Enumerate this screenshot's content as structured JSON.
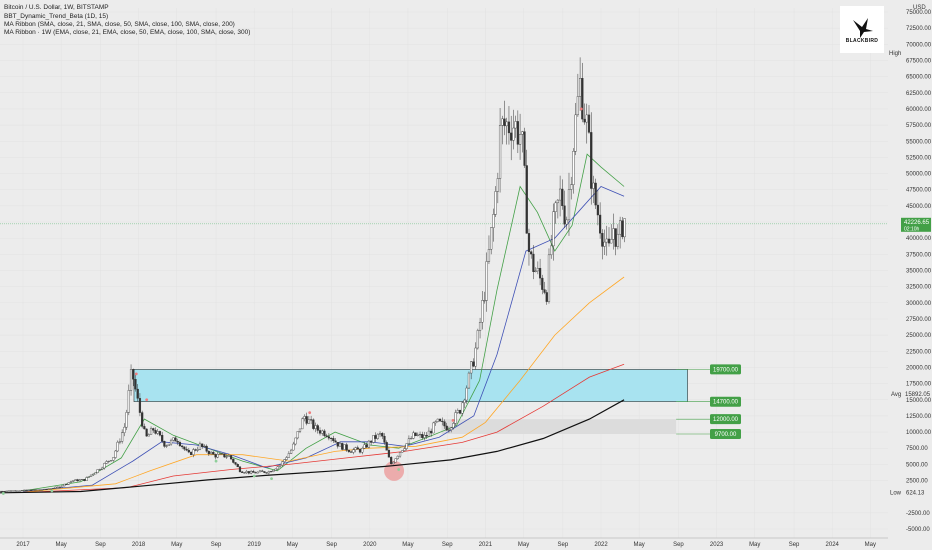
{
  "chart_data": {
    "type": "candlestick",
    "title": "Bitcoin / U.S. Dollar, 1W, BITSTAMP",
    "legend_lines": [
      "BBT_Dynamic_Trend_Beta (1D, 15)",
      "MA Ribbon (SMA, close, 21, SMA, close, 50, SMA, close, 100, SMA, close, 200)",
      "MA Ribbon · 1W (EMA, close, 21, EMA, close, 50, EMA, close, 100, SMA, close, 300)"
    ],
    "currency": "USD",
    "ylim": [
      -6000,
      76000
    ],
    "y_ticks": [
      -5000,
      -2500,
      2500,
      5000,
      7500,
      10000,
      12500,
      15000,
      17500,
      20000,
      22500,
      25000,
      27500,
      30000,
      32500,
      35000,
      37500,
      40000,
      42500,
      45000,
      47500,
      50000,
      52500,
      55000,
      57500,
      60000,
      62500,
      65000,
      67500,
      70000,
      72500,
      75000
    ],
    "y_tick_labels": [
      "-5000.00",
      "-2500.00",
      "2500.00",
      "5000.00",
      "7500.00",
      "10000.00",
      "12500.00",
      "15000.00",
      "17500.00",
      "20000.00",
      "22500.00",
      "25000.00",
      "27500.00",
      "30000.00",
      "32500.00",
      "35000.00",
      "37500.00",
      "40000.00",
      "42500.00",
      "45000.00",
      "47500.00",
      "50000.00",
      "52500.00",
      "55000.00",
      "57500.00",
      "60000.00",
      "62500.00",
      "65000.00",
      "67500.00",
      "70000.00",
      "72500.00",
      "75000.00"
    ],
    "x_ticks": [
      {
        "label": "2017",
        "t": 2017.0
      },
      {
        "label": "May",
        "t": 2017.33
      },
      {
        "label": "Sep",
        "t": 2017.67
      },
      {
        "label": "2018",
        "t": 2018.0
      },
      {
        "label": "May",
        "t": 2018.33
      },
      {
        "label": "Sep",
        "t": 2018.67
      },
      {
        "label": "2019",
        "t": 2019.0
      },
      {
        "label": "May",
        "t": 2019.33
      },
      {
        "label": "Sep",
        "t": 2019.67
      },
      {
        "label": "2020",
        "t": 2020.0
      },
      {
        "label": "May",
        "t": 2020.33
      },
      {
        "label": "Sep",
        "t": 2020.67
      },
      {
        "label": "2021",
        "t": 2021.0
      },
      {
        "label": "May",
        "t": 2021.33
      },
      {
        "label": "Sep",
        "t": 2021.67
      },
      {
        "label": "2022",
        "t": 2022.0
      },
      {
        "label": "May",
        "t": 2022.33
      },
      {
        "label": "Sep",
        "t": 2022.67
      },
      {
        "label": "2023",
        "t": 2023.0
      },
      {
        "label": "May",
        "t": 2023.33
      },
      {
        "label": "Sep",
        "t": 2023.67
      },
      {
        "label": "2024",
        "t": 2024.0
      },
      {
        "label": "May",
        "t": 2024.33
      }
    ],
    "xlim": [
      2016.8,
      2024.75
    ],
    "price_path": [
      [
        2016.8,
        850
      ],
      [
        2017.0,
        960
      ],
      [
        2017.2,
        1100
      ],
      [
        2017.33,
        1500
      ],
      [
        2017.45,
        2500
      ],
      [
        2017.55,
        2600
      ],
      [
        2017.67,
        4200
      ],
      [
        2017.8,
        6200
      ],
      [
        2017.9,
        11000
      ],
      [
        2017.96,
        19500
      ],
      [
        2018.02,
        14000
      ],
      [
        2018.08,
        9000
      ],
      [
        2018.15,
        10500
      ],
      [
        2018.25,
        8000
      ],
      [
        2018.35,
        9000
      ],
      [
        2018.45,
        6500
      ],
      [
        2018.55,
        7900
      ],
      [
        2018.67,
        6400
      ],
      [
        2018.8,
        6300
      ],
      [
        2018.9,
        4000
      ],
      [
        2019.0,
        3700
      ],
      [
        2019.15,
        3900
      ],
      [
        2019.25,
        5000
      ],
      [
        2019.35,
        7500
      ],
      [
        2019.45,
        12500
      ],
      [
        2019.55,
        10500
      ],
      [
        2019.67,
        9600
      ],
      [
        2019.75,
        8000
      ],
      [
        2019.85,
        7200
      ],
      [
        2019.95,
        7200
      ],
      [
        2020.05,
        9000
      ],
      [
        2020.12,
        9700
      ],
      [
        2020.2,
        5000
      ],
      [
        2020.28,
        7000
      ],
      [
        2020.4,
        9500
      ],
      [
        2020.5,
        9200
      ],
      [
        2020.6,
        11500
      ],
      [
        2020.7,
        10700
      ],
      [
        2020.8,
        13500
      ],
      [
        2020.88,
        18500
      ],
      [
        2020.95,
        24000
      ],
      [
        2021.02,
        33000
      ],
      [
        2021.1,
        45000
      ],
      [
        2021.15,
        57000
      ],
      [
        2021.25,
        58000
      ],
      [
        2021.33,
        56000
      ],
      [
        2021.4,
        37000
      ],
      [
        2021.48,
        34000
      ],
      [
        2021.55,
        32000
      ],
      [
        2021.6,
        41000
      ],
      [
        2021.67,
        47000
      ],
      [
        2021.72,
        43000
      ],
      [
        2021.78,
        55000
      ],
      [
        2021.84,
        64000
      ],
      [
        2021.9,
        57000
      ],
      [
        2021.95,
        47000
      ],
      [
        2022.02,
        42000
      ],
      [
        2022.08,
        37000
      ],
      [
        2022.13,
        42000
      ],
      [
        2022.17,
        39000
      ],
      [
        2022.21,
        43000
      ]
    ],
    "ma_lines": [
      {
        "color": "#43a047",
        "points": [
          [
            2017.0,
            900
          ],
          [
            2017.5,
            2300
          ],
          [
            2017.85,
            6000
          ],
          [
            2018.05,
            12000
          ],
          [
            2018.3,
            9500
          ],
          [
            2018.6,
            7500
          ],
          [
            2018.9,
            5500
          ],
          [
            2019.2,
            4000
          ],
          [
            2019.45,
            7500
          ],
          [
            2019.7,
            10000
          ],
          [
            2020.0,
            8000
          ],
          [
            2020.25,
            7500
          ],
          [
            2020.5,
            9200
          ],
          [
            2020.75,
            11000
          ],
          [
            2020.95,
            18000
          ],
          [
            2021.1,
            32000
          ],
          [
            2021.3,
            48000
          ],
          [
            2021.45,
            44000
          ],
          [
            2021.6,
            38000
          ],
          [
            2021.75,
            42000
          ],
          [
            2021.88,
            53000
          ],
          [
            2022.0,
            51000
          ],
          [
            2022.2,
            48000
          ]
        ]
      },
      {
        "color": "#3f51b5",
        "points": [
          [
            2017.0,
            800
          ],
          [
            2017.6,
            1800
          ],
          [
            2017.95,
            5500
          ],
          [
            2018.2,
            8500
          ],
          [
            2018.5,
            8000
          ],
          [
            2018.8,
            6500
          ],
          [
            2019.1,
            4500
          ],
          [
            2019.45,
            6000
          ],
          [
            2019.75,
            8500
          ],
          [
            2020.0,
            8500
          ],
          [
            2020.3,
            7800
          ],
          [
            2020.6,
            9200
          ],
          [
            2020.9,
            12500
          ],
          [
            2021.1,
            22000
          ],
          [
            2021.35,
            38000
          ],
          [
            2021.6,
            40000
          ],
          [
            2021.8,
            44000
          ],
          [
            2022.0,
            48000
          ],
          [
            2022.2,
            46500
          ]
        ]
      },
      {
        "color": "#ffa726",
        "points": [
          [
            2017.0,
            700
          ],
          [
            2017.8,
            2000
          ],
          [
            2018.1,
            4000
          ],
          [
            2018.5,
            6500
          ],
          [
            2018.9,
            6500
          ],
          [
            2019.3,
            5500
          ],
          [
            2019.7,
            7000
          ],
          [
            2020.0,
            7500
          ],
          [
            2020.4,
            7800
          ],
          [
            2020.8,
            9200
          ],
          [
            2021.0,
            11500
          ],
          [
            2021.3,
            18000
          ],
          [
            2021.6,
            25000
          ],
          [
            2021.9,
            30000
          ],
          [
            2022.2,
            34000
          ]
        ]
      },
      {
        "color": "#e53935",
        "points": [
          [
            2017.0,
            650
          ],
          [
            2017.9,
            1400
          ],
          [
            2018.3,
            3200
          ],
          [
            2018.8,
            4200
          ],
          [
            2019.3,
            5000
          ],
          [
            2019.8,
            6000
          ],
          [
            2020.3,
            7000
          ],
          [
            2020.8,
            8400
          ],
          [
            2021.1,
            10000
          ],
          [
            2021.5,
            14000
          ],
          [
            2021.9,
            18500
          ],
          [
            2022.2,
            20500
          ]
        ]
      },
      {
        "color": "#111111",
        "points": [
          [
            2016.8,
            600
          ],
          [
            2017.5,
            800
          ],
          [
            2018.0,
            1600
          ],
          [
            2018.6,
            2600
          ],
          [
            2019.1,
            3300
          ],
          [
            2019.7,
            4000
          ],
          [
            2020.2,
            4800
          ],
          [
            2020.7,
            5700
          ],
          [
            2021.1,
            7000
          ],
          [
            2021.5,
            9000
          ],
          [
            2021.9,
            12000
          ],
          [
            2022.2,
            15000
          ]
        ]
      }
    ],
    "zones": [
      {
        "name": "cyan-zone",
        "t0": 2017.96,
        "t1": 2022.75,
        "y0": 14700,
        "y1": 19700,
        "color": "#a8e3f0"
      },
      {
        "name": "gray-zone",
        "t0": 2020.62,
        "t1": 2022.65,
        "y0": 9700,
        "y1": 12000,
        "color": "#dcdcdc"
      }
    ],
    "level_labels": [
      {
        "value": 19700,
        "text": "19700.00"
      },
      {
        "value": 14700,
        "text": "14700.00"
      },
      {
        "value": 12000,
        "text": "12000.00"
      },
      {
        "value": 9700,
        "text": "9700.00"
      }
    ],
    "current_price": {
      "value": 42226.65,
      "text": "42226.65",
      "subtext": "02:10h"
    },
    "avg": {
      "label": "Avg",
      "value": 15892.05,
      "text": "15892.05"
    },
    "high": {
      "label": "High"
    },
    "low": {
      "label": "Low",
      "value": 624.13,
      "text": "624.13"
    },
    "highlight_circle": {
      "t": 2020.21,
      "y": 4000
    }
  },
  "brand": {
    "name": "BLACKBIRD"
  }
}
